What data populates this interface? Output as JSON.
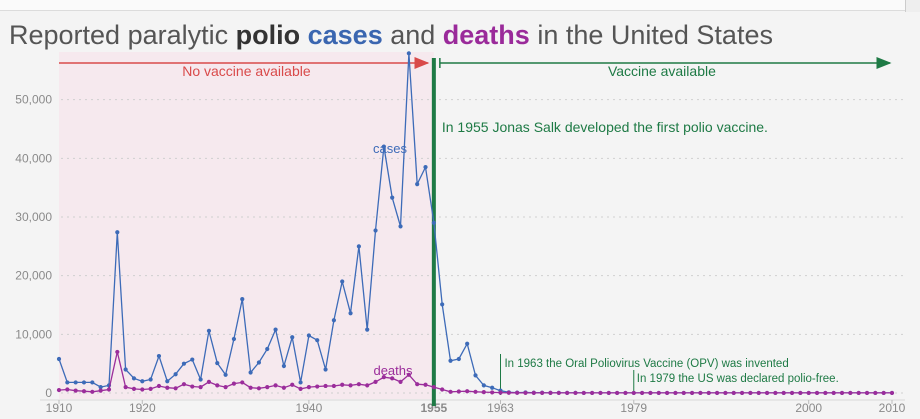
{
  "title": {
    "part1": "Reported paralytic ",
    "polio": "polio",
    "part2": " ",
    "cases": "cases",
    "part3": " and ",
    "deaths": "deaths",
    "part4": " in the United States"
  },
  "colors": {
    "cases": "#3d6bb8",
    "deaths": "#9b2d9b",
    "no_vaccine": "#d94a4a",
    "vaccine": "#1e7a45",
    "pre_vaccine_bg": "#f6e9ee"
  },
  "labels": {
    "no_vaccine": "No vaccine available",
    "vaccine": "Vaccine available",
    "salk": "In 1955 Jonas Salk developed the first polio vaccine.",
    "opv": "In 1963 the Oral Poliovirus Vaccine (OPV) was invented",
    "free": "In 1979 the US was declared polio-free.",
    "cases_series": "cases",
    "deaths_series": "deaths"
  },
  "chart_data": {
    "type": "line",
    "title": "Reported paralytic polio cases and deaths in the United States",
    "xlim": [
      1910,
      2010
    ],
    "ylim": [
      0,
      60000
    ],
    "xticks": [
      "1910",
      "1920",
      "1940",
      "1955",
      "1963",
      "1979",
      "2000",
      "2010"
    ],
    "yticks": [
      "0",
      "10,000",
      "20,000",
      "30,000",
      "40,000",
      "50,000"
    ],
    "grid": "horizontal dotted",
    "x": [
      1910,
      1911,
      1912,
      1913,
      1914,
      1915,
      1916,
      1917,
      1918,
      1919,
      1920,
      1921,
      1922,
      1923,
      1924,
      1925,
      1926,
      1927,
      1928,
      1929,
      1930,
      1931,
      1932,
      1933,
      1934,
      1935,
      1936,
      1937,
      1938,
      1939,
      1940,
      1941,
      1942,
      1943,
      1944,
      1945,
      1946,
      1947,
      1948,
      1949,
      1950,
      1951,
      1952,
      1953,
      1954,
      1955,
      1956,
      1957,
      1958,
      1959,
      1960,
      1961,
      1962,
      1963,
      1964,
      1965,
      1966,
      1967,
      1968,
      1969,
      1970,
      1971,
      1972,
      1973,
      1974,
      1975,
      1976,
      1977,
      1978,
      1979,
      1980,
      1981,
      1982,
      1983,
      1984,
      1985,
      1986,
      1987,
      1988,
      1989,
      1990,
      1991,
      1992,
      1993,
      1994,
      1995,
      1996,
      1997,
      1998,
      1999,
      2000,
      2001,
      2002,
      2003,
      2004,
      2005,
      2006,
      2007,
      2008,
      2009,
      2010
    ],
    "series": [
      {
        "name": "cases",
        "values": [
          5800,
          1800,
          1800,
          1800,
          1800,
          1000,
          1300,
          27400,
          4000,
          2500,
          2000,
          2300,
          6300,
          2000,
          3200,
          5000,
          5700,
          2300,
          10600,
          5100,
          3100,
          9200,
          16000,
          3500,
          5200,
          7500,
          10800,
          4600,
          9500,
          1800,
          9800,
          9000,
          4000,
          12400,
          19000,
          13600,
          25000,
          10800,
          27700,
          42000,
          33300,
          28400,
          57900,
          35600,
          38500,
          29000,
          15100,
          5500,
          5800,
          8400,
          3000,
          1300,
          900,
          400,
          120,
          70,
          100,
          40,
          50,
          20,
          30,
          20,
          30,
          10,
          10,
          10,
          10,
          10,
          10,
          10,
          10,
          10,
          10,
          10,
          10,
          10,
          10,
          10,
          10,
          10,
          10,
          10,
          10,
          10,
          10,
          10,
          10,
          10,
          10,
          10,
          10,
          10,
          10,
          10,
          10,
          10,
          10,
          10,
          10,
          10,
          10
        ]
      },
      {
        "name": "deaths",
        "values": [
          500,
          600,
          400,
          300,
          200,
          400,
          600,
          7000,
          1000,
          700,
          600,
          700,
          1200,
          900,
          800,
          1500,
          1100,
          1000,
          1900,
          1300,
          1000,
          1600,
          1800,
          900,
          800,
          1000,
          1300,
          900,
          1400,
          700,
          1000,
          1100,
          1200,
          1200,
          1400,
          1300,
          1500,
          1300,
          1900,
          2700,
          2500,
          1900,
          3100,
          1500,
          1400,
          1000,
          600,
          200,
          250,
          300,
          200,
          150,
          100,
          60,
          40,
          30,
          25,
          20,
          20,
          15,
          10,
          10,
          10,
          10,
          10,
          10,
          10,
          10,
          10,
          10,
          10,
          10,
          10,
          10,
          10,
          10,
          10,
          10,
          10,
          10,
          10,
          10,
          10,
          10,
          10,
          10,
          10,
          10,
          10,
          10,
          10,
          10,
          10,
          10,
          10,
          10,
          10,
          10,
          10,
          10,
          10
        ]
      }
    ],
    "annotations": [
      {
        "x": 1955,
        "text": "In 1955 Jonas Salk developed the first polio vaccine."
      },
      {
        "x": 1963,
        "text": "In 1963 the Oral Poliovirus Vaccine (OPV) was invented"
      },
      {
        "x": 1979,
        "text": "In 1979 the US was declared polio-free."
      }
    ]
  }
}
